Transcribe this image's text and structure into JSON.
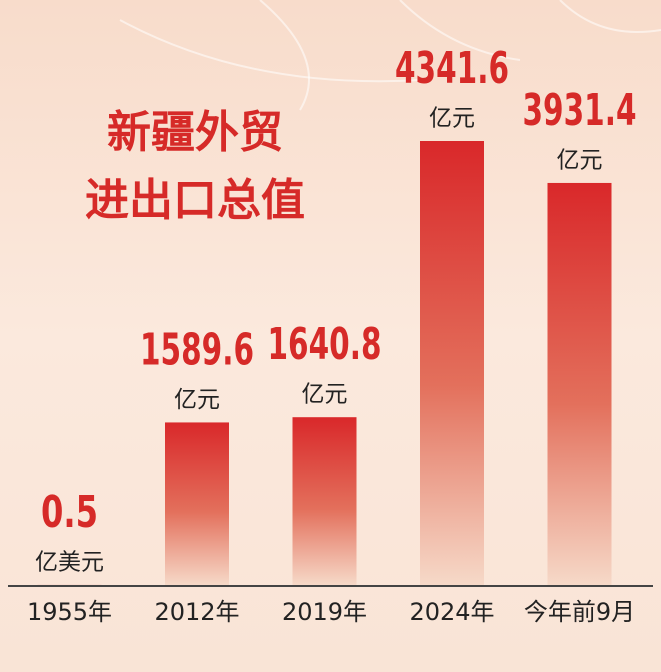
{
  "chart_data": {
    "type": "bar",
    "title": [
      "新疆外贸",
      "进出口总值"
    ],
    "categories": [
      "1955年",
      "2012年",
      "2019年",
      "2024年",
      "今年前9月"
    ],
    "values": [
      0.5,
      1589.6,
      1640.8,
      4341.6,
      3931.4
    ],
    "units": [
      "亿美元",
      "亿元",
      "亿元",
      "亿元",
      "亿元"
    ],
    "color": "#d9282a"
  }
}
